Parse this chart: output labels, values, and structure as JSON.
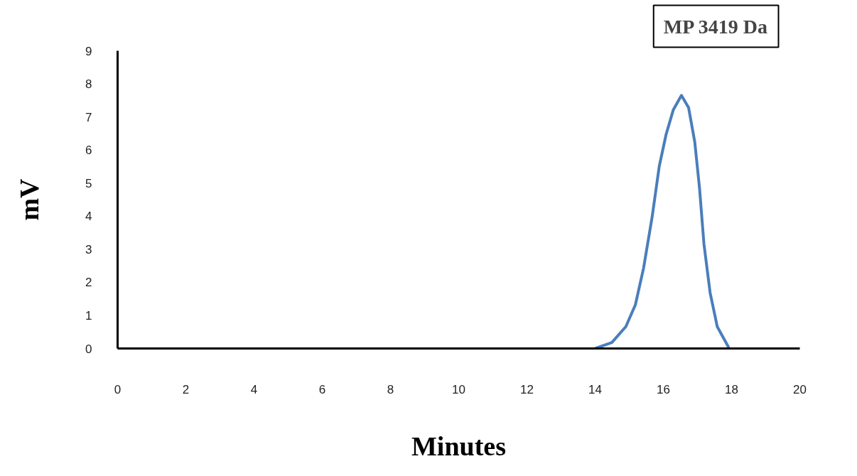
{
  "chart_data": {
    "type": "line",
    "xlabel": "Minutes",
    "ylabel": "mV",
    "annotations": [
      "MP 3419 Da"
    ],
    "xlim": [
      0,
      20
    ],
    "ylim": [
      0,
      9
    ],
    "xticks": [
      0,
      2,
      4,
      6,
      8,
      10,
      12,
      14,
      16,
      18,
      20
    ],
    "yticks": [
      0,
      1,
      2,
      3,
      4,
      5,
      6,
      7,
      8,
      9
    ],
    "grid": false,
    "series": [
      {
        "color": "#4a7ebb",
        "x": [
          14.0,
          14.49,
          14.9,
          15.18,
          15.42,
          15.67,
          15.88,
          16.08,
          16.29,
          16.53,
          16.74,
          16.92,
          17.06,
          17.19,
          17.37,
          17.58,
          17.92
        ],
        "values": [
          0,
          0.18,
          0.66,
          1.32,
          2.43,
          3.97,
          5.51,
          6.47,
          7.21,
          7.65,
          7.28,
          6.25,
          4.85,
          3.16,
          1.69,
          0.66,
          0.02
        ]
      }
    ]
  }
}
